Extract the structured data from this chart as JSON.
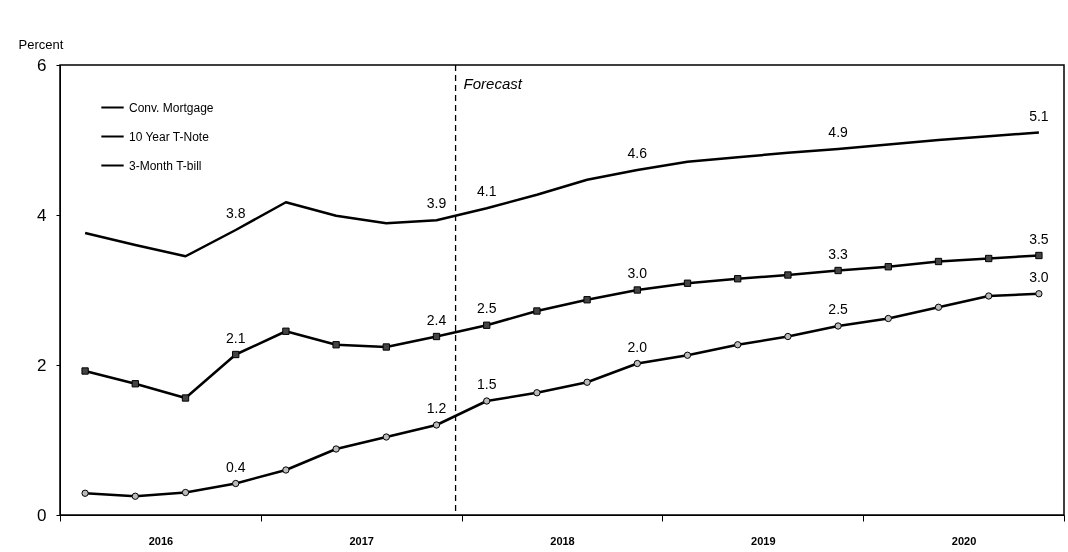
{
  "chart_data": {
    "type": "line",
    "ylabel": "Percent",
    "x": [
      2016.125,
      2016.375,
      2016.625,
      2016.875,
      2017.125,
      2017.375,
      2017.625,
      2017.875,
      2018.125,
      2018.375,
      2018.625,
      2018.875,
      2019.125,
      2019.375,
      2019.625,
      2019.875,
      2020.125,
      2020.375,
      2020.625,
      2020.875
    ],
    "xlim": [
      2016,
      2021
    ],
    "xticks": [
      {
        "value": 2016,
        "label": null
      },
      {
        "value": 2016.5,
        "label": "2016"
      },
      {
        "value": 2017,
        "label": null
      },
      {
        "value": 2017.5,
        "label": "2017"
      },
      {
        "value": 2018,
        "label": null
      },
      {
        "value": 2018.5,
        "label": "2018"
      },
      {
        "value": 2019,
        "label": null
      },
      {
        "value": 2019.5,
        "label": "2019"
      },
      {
        "value": 2020,
        "label": null
      },
      {
        "value": 2020.5,
        "label": "2020"
      },
      {
        "value": 2021,
        "label": null
      }
    ],
    "ylim": [
      0,
      6
    ],
    "yticks": [
      0,
      2,
      4,
      6
    ],
    "legend": "top left",
    "series": [
      {
        "name": "Conv. Mortgage",
        "color": "#000000",
        "marker": "none",
        "values": [
          3.76,
          3.6,
          3.45,
          3.8,
          4.17,
          3.99,
          3.89,
          3.93,
          4.09,
          4.27,
          4.47,
          4.6,
          4.71,
          4.77,
          4.83,
          4.88,
          4.94,
          5.0,
          5.05,
          5.1
        ],
        "value_labels": [
          null,
          null,
          null,
          "3.8",
          null,
          null,
          null,
          "3.9",
          "4.1",
          null,
          null,
          "4.6",
          null,
          null,
          null,
          "4.9",
          null,
          null,
          null,
          "5.1"
        ]
      },
      {
        "name": "10 Year T-Note",
        "color": "#000000",
        "marker": "square",
        "values": [
          1.92,
          1.75,
          1.56,
          2.14,
          2.45,
          2.27,
          2.24,
          2.38,
          2.53,
          2.72,
          2.87,
          3.0,
          3.09,
          3.15,
          3.2,
          3.26,
          3.31,
          3.38,
          3.42,
          3.46
        ],
        "value_labels": [
          null,
          null,
          null,
          "2.1",
          null,
          null,
          null,
          "2.4",
          "2.5",
          null,
          null,
          "3.0",
          null,
          null,
          null,
          "3.3",
          null,
          null,
          null,
          "3.5"
        ]
      },
      {
        "name": "3-Month T-bill",
        "color": "#000000",
        "marker": "circle",
        "values": [
          0.29,
          0.25,
          0.3,
          0.42,
          0.6,
          0.88,
          1.04,
          1.2,
          1.52,
          1.63,
          1.77,
          2.02,
          2.13,
          2.27,
          2.38,
          2.52,
          2.62,
          2.77,
          2.92,
          2.95
        ],
        "value_labels": [
          null,
          null,
          null,
          "0.4",
          null,
          null,
          null,
          "1.2",
          "1.5",
          null,
          null,
          "2.0",
          null,
          null,
          null,
          "2.5",
          null,
          null,
          null,
          "3.0"
        ]
      }
    ],
    "ref_lines": [
      {
        "axis": "x",
        "value": 2017.97,
        "label": "Forecast",
        "line_style": "dashed"
      }
    ]
  }
}
